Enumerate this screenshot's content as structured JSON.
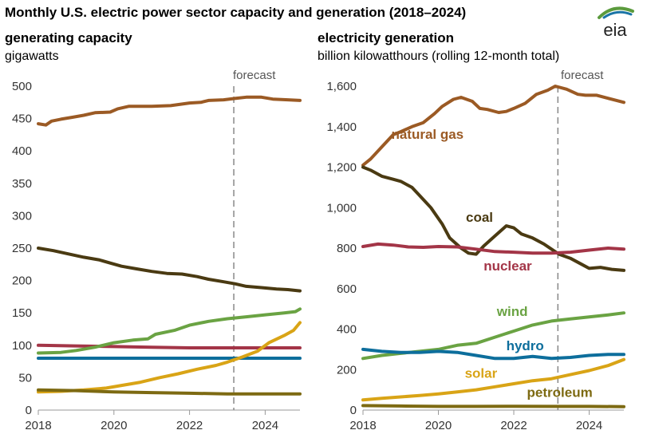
{
  "title": "Monthly U.S. electric power sector capacity and generation (2018–2024)",
  "logo_text": "eia",
  "forecast_label": "forecast",
  "colors": {
    "natural_gas": "#9B5A24",
    "coal": "#4A3A12",
    "nuclear": "#A33547",
    "wind": "#6AA343",
    "hydro": "#0D6E9C",
    "solar": "#D9A416",
    "petroleum": "#7D6A12",
    "logo_green": "#5B9B3D",
    "logo_blue": "#1B75A6"
  },
  "chart_data": [
    {
      "type": "line",
      "title": "generating capacity",
      "ylabel": "gigawatts",
      "xlim": [
        2018,
        2024.92
      ],
      "ylim": [
        0,
        500
      ],
      "yticks": [
        0,
        50,
        100,
        150,
        200,
        250,
        300,
        350,
        400,
        450,
        500
      ],
      "ytick_labels": [
        "0",
        "50",
        "100",
        "150",
        "200",
        "250",
        "300",
        "350",
        "400",
        "450",
        "500"
      ],
      "xticks": [
        2018,
        2020,
        2022,
        2024
      ],
      "xtick_labels": [
        "2018",
        "2020",
        "2022",
        "2024"
      ],
      "forecast_start": 2023.17,
      "grid": false,
      "series": [
        {
          "key": "natural_gas",
          "points": [
            [
              2018,
              442
            ],
            [
              2018.2,
              440
            ],
            [
              2018.35,
              446
            ],
            [
              2018.6,
              449
            ],
            [
              2018.9,
              452
            ],
            [
              2019.2,
              455
            ],
            [
              2019.5,
              459
            ],
            [
              2019.9,
              460
            ],
            [
              2020.1,
              465
            ],
            [
              2020.4,
              469
            ],
            [
              2021.0,
              469
            ],
            [
              2021.5,
              470
            ],
            [
              2022.0,
              474
            ],
            [
              2022.3,
              475
            ],
            [
              2022.5,
              478
            ],
            [
              2022.9,
              479
            ],
            [
              2023.2,
              481
            ],
            [
              2023.5,
              483
            ],
            [
              2023.9,
              483
            ],
            [
              2024.2,
              480
            ],
            [
              2024.6,
              479
            ],
            [
              2024.92,
              478
            ]
          ]
        },
        {
          "key": "coal",
          "points": [
            [
              2018,
              250
            ],
            [
              2018.4,
              246
            ],
            [
              2018.8,
              241
            ],
            [
              2019.2,
              236
            ],
            [
              2019.6,
              232
            ],
            [
              2019.9,
              227
            ],
            [
              2020.2,
              222
            ],
            [
              2020.6,
              218
            ],
            [
              2021.0,
              214
            ],
            [
              2021.4,
              211
            ],
            [
              2021.8,
              210
            ],
            [
              2022.2,
              206
            ],
            [
              2022.5,
              202
            ],
            [
              2022.9,
              198
            ],
            [
              2023.2,
              195
            ],
            [
              2023.5,
              191
            ],
            [
              2023.9,
              189
            ],
            [
              2024.3,
              187
            ],
            [
              2024.6,
              186
            ],
            [
              2024.92,
              184
            ]
          ]
        },
        {
          "key": "nuclear",
          "points": [
            [
              2018,
              100
            ],
            [
              2019.0,
              99
            ],
            [
              2020.0,
              98
            ],
            [
              2021.0,
              97
            ],
            [
              2022.0,
              96
            ],
            [
              2023.0,
              96
            ],
            [
              2024.0,
              96
            ],
            [
              2024.92,
              96
            ]
          ]
        },
        {
          "key": "wind",
          "points": [
            [
              2018,
              88
            ],
            [
              2018.6,
              89
            ],
            [
              2019.0,
              92
            ],
            [
              2019.5,
              97
            ],
            [
              2020.0,
              104
            ],
            [
              2020.5,
              108
            ],
            [
              2020.9,
              110
            ],
            [
              2021.1,
              117
            ],
            [
              2021.6,
              123
            ],
            [
              2022.0,
              131
            ],
            [
              2022.5,
              137
            ],
            [
              2023.0,
              141
            ],
            [
              2023.5,
              144
            ],
            [
              2024.0,
              147
            ],
            [
              2024.5,
              150
            ],
            [
              2024.8,
              152
            ],
            [
              2024.92,
              156
            ]
          ]
        },
        {
          "key": "hydro",
          "points": [
            [
              2018,
              80
            ],
            [
              2024.92,
              80
            ]
          ]
        },
        {
          "key": "solar",
          "points": [
            [
              2018,
              28
            ],
            [
              2018.6,
              29
            ],
            [
              2019.2,
              31
            ],
            [
              2019.8,
              34
            ],
            [
              2020.2,
              38
            ],
            [
              2020.7,
              43
            ],
            [
              2021.2,
              50
            ],
            [
              2021.7,
              56
            ],
            [
              2022.2,
              63
            ],
            [
              2022.7,
              69
            ],
            [
              2023.0,
              74
            ],
            [
              2023.4,
              82
            ],
            [
              2023.8,
              91
            ],
            [
              2024.1,
              104
            ],
            [
              2024.5,
              115
            ],
            [
              2024.75,
              123
            ],
            [
              2024.92,
              135
            ]
          ]
        },
        {
          "key": "petroleum",
          "points": [
            [
              2018,
              31
            ],
            [
              2019.0,
              30
            ],
            [
              2020.0,
              28
            ],
            [
              2021.0,
              27
            ],
            [
              2022.0,
              26
            ],
            [
              2023.0,
              25
            ],
            [
              2024.0,
              25
            ],
            [
              2024.92,
              25
            ]
          ]
        }
      ]
    },
    {
      "type": "line",
      "title": "electricity generation",
      "ylabel": "billion kilowatthours (rolling 12-month total)",
      "xlim": [
        2018,
        2024.92
      ],
      "ylim": [
        0,
        1600
      ],
      "yticks": [
        0,
        200,
        400,
        600,
        800,
        1000,
        1200,
        1400,
        1600
      ],
      "ytick_labels": [
        "0",
        "200",
        "400",
        "600",
        "800",
        "1,000",
        "1,200",
        "1,400",
        "1,600"
      ],
      "xticks": [
        2018,
        2020,
        2022,
        2024
      ],
      "xtick_labels": [
        "2018",
        "2020",
        "2022",
        "2024"
      ],
      "forecast_start": 2023.17,
      "grid": false,
      "series": [
        {
          "key": "natural_gas",
          "label": "natural gas",
          "label_at": [
            2018.75,
            1340
          ],
          "label_anchor": "start",
          "points": [
            [
              2018,
              1210
            ],
            [
              2018.2,
              1240
            ],
            [
              2018.5,
              1300
            ],
            [
              2018.8,
              1360
            ],
            [
              2019.0,
              1375
            ],
            [
              2019.3,
              1400
            ],
            [
              2019.6,
              1420
            ],
            [
              2019.9,
              1465
            ],
            [
              2020.1,
              1500
            ],
            [
              2020.4,
              1535
            ],
            [
              2020.6,
              1545
            ],
            [
              2020.9,
              1525
            ],
            [
              2021.1,
              1490
            ],
            [
              2021.3,
              1485
            ],
            [
              2021.6,
              1470
            ],
            [
              2021.8,
              1475
            ],
            [
              2022.0,
              1490
            ],
            [
              2022.3,
              1515
            ],
            [
              2022.6,
              1560
            ],
            [
              2022.9,
              1580
            ],
            [
              2023.1,
              1600
            ],
            [
              2023.4,
              1585
            ],
            [
              2023.7,
              1560
            ],
            [
              2023.9,
              1555
            ],
            [
              2024.2,
              1555
            ],
            [
              2024.5,
              1540
            ],
            [
              2024.92,
              1520
            ]
          ]
        },
        {
          "key": "coal",
          "label": "coal",
          "label_at": [
            2021.45,
            930
          ],
          "label_anchor": "end",
          "points": [
            [
              2018,
              1200
            ],
            [
              2018.2,
              1185
            ],
            [
              2018.5,
              1155
            ],
            [
              2018.8,
              1140
            ],
            [
              2019.0,
              1130
            ],
            [
              2019.3,
              1100
            ],
            [
              2019.5,
              1060
            ],
            [
              2019.8,
              1000
            ],
            [
              2020.1,
              920
            ],
            [
              2020.3,
              850
            ],
            [
              2020.6,
              800
            ],
            [
              2020.8,
              775
            ],
            [
              2021.0,
              770
            ],
            [
              2021.2,
              810
            ],
            [
              2021.5,
              860
            ],
            [
              2021.8,
              910
            ],
            [
              2022.0,
              900
            ],
            [
              2022.2,
              870
            ],
            [
              2022.5,
              850
            ],
            [
              2022.8,
              820
            ],
            [
              2023.0,
              795
            ],
            [
              2023.2,
              770
            ],
            [
              2023.5,
              750
            ],
            [
              2023.8,
              720
            ],
            [
              2024.0,
              700
            ],
            [
              2024.3,
              705
            ],
            [
              2024.6,
              695
            ],
            [
              2024.92,
              690
            ]
          ]
        },
        {
          "key": "nuclear",
          "label": "nuclear",
          "label_at": [
            2021.2,
            690
          ],
          "label_anchor": "start",
          "points": [
            [
              2018,
              808
            ],
            [
              2018.4,
              820
            ],
            [
              2018.8,
              815
            ],
            [
              2019.2,
              806
            ],
            [
              2019.6,
              804
            ],
            [
              2020.0,
              808
            ],
            [
              2020.5,
              806
            ],
            [
              2021.0,
              795
            ],
            [
              2021.5,
              783
            ],
            [
              2022.0,
              780
            ],
            [
              2022.5,
              775
            ],
            [
              2023.0,
              775
            ],
            [
              2023.5,
              780
            ],
            [
              2024.0,
              790
            ],
            [
              2024.5,
              800
            ],
            [
              2024.92,
              795
            ]
          ]
        },
        {
          "key": "wind",
          "label": "wind",
          "label_at": [
            2021.55,
            465
          ],
          "label_anchor": "start",
          "points": [
            [
              2018,
              255
            ],
            [
              2018.5,
              270
            ],
            [
              2019.0,
              280
            ],
            [
              2019.5,
              290
            ],
            [
              2020.0,
              300
            ],
            [
              2020.5,
              320
            ],
            [
              2021.0,
              330
            ],
            [
              2021.5,
              360
            ],
            [
              2022.0,
              390
            ],
            [
              2022.5,
              420
            ],
            [
              2023.0,
              440
            ],
            [
              2023.5,
              450
            ],
            [
              2024.0,
              460
            ],
            [
              2024.5,
              470
            ],
            [
              2024.92,
              480
            ]
          ]
        },
        {
          "key": "hydro",
          "label": "hydro",
          "label_at": [
            2021.8,
            295
          ],
          "label_anchor": "start",
          "points": [
            [
              2018,
              300
            ],
            [
              2018.5,
              290
            ],
            [
              2019.0,
              285
            ],
            [
              2019.5,
              285
            ],
            [
              2020.0,
              290
            ],
            [
              2020.5,
              285
            ],
            [
              2021.0,
              270
            ],
            [
              2021.5,
              255
            ],
            [
              2022.0,
              255
            ],
            [
              2022.5,
              265
            ],
            [
              2023.0,
              255
            ],
            [
              2023.5,
              260
            ],
            [
              2024.0,
              270
            ],
            [
              2024.5,
              275
            ],
            [
              2024.92,
              275
            ]
          ]
        },
        {
          "key": "solar",
          "label": "solar",
          "label_at": [
            2020.7,
            160
          ],
          "label_anchor": "start",
          "points": [
            [
              2018,
              50
            ],
            [
              2018.5,
              58
            ],
            [
              2019.0,
              65
            ],
            [
              2019.5,
              72
            ],
            [
              2020.0,
              80
            ],
            [
              2020.5,
              90
            ],
            [
              2021.0,
              100
            ],
            [
              2021.5,
              115
            ],
            [
              2022.0,
              130
            ],
            [
              2022.5,
              145
            ],
            [
              2023.0,
              155
            ],
            [
              2023.5,
              175
            ],
            [
              2024.0,
              195
            ],
            [
              2024.5,
              220
            ],
            [
              2024.92,
              250
            ]
          ]
        },
        {
          "key": "petroleum",
          "label": "petroleum",
          "label_at": [
            2022.35,
            65
          ],
          "label_anchor": "start",
          "points": [
            [
              2018,
              22
            ],
            [
              2019.0,
              20
            ],
            [
              2020.0,
              18
            ],
            [
              2021.0,
              18
            ],
            [
              2022.0,
              19
            ],
            [
              2023.0,
              18
            ],
            [
              2024.0,
              18
            ],
            [
              2024.92,
              17
            ]
          ]
        }
      ]
    }
  ]
}
